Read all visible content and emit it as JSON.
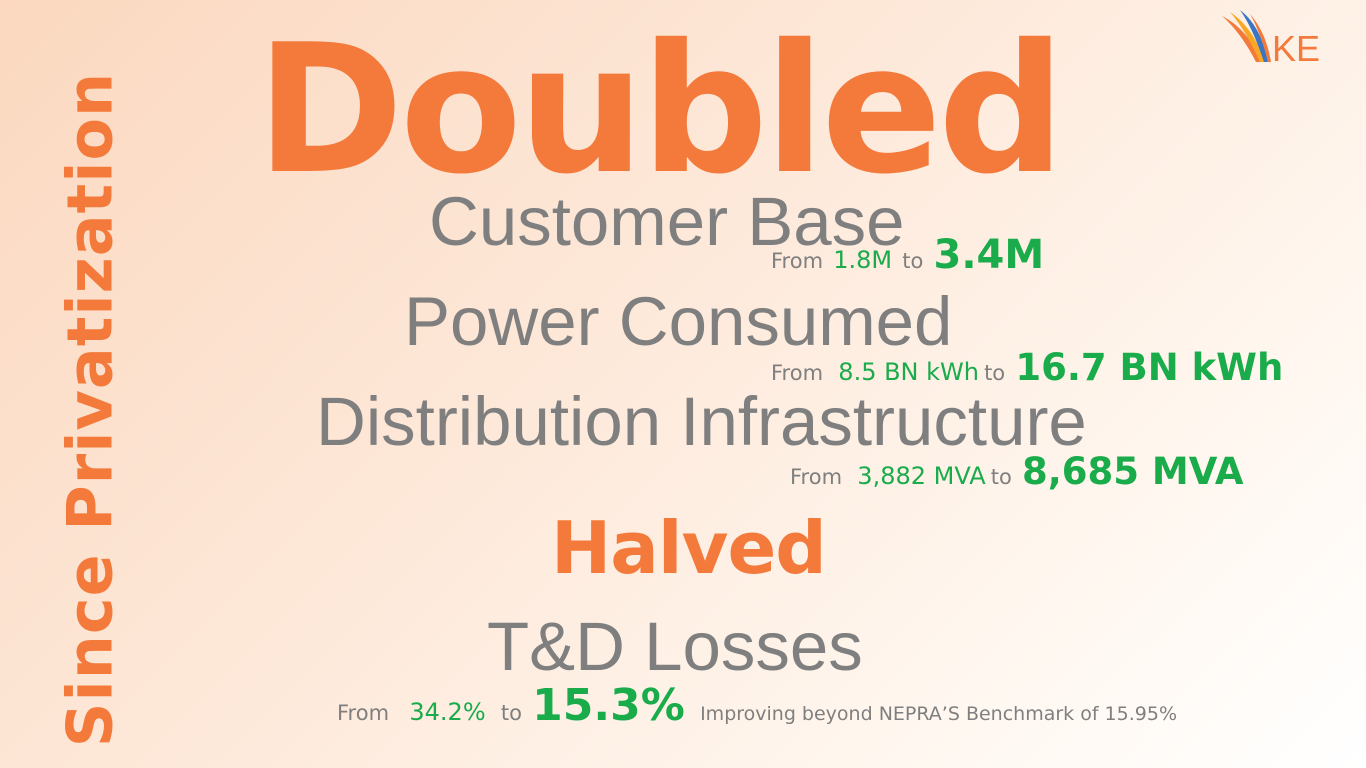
{
  "side_title": "Since Privatization",
  "headline_doubled": "Doubled",
  "headline_halved": "Halved",
  "metrics": [
    {
      "title": "Customer Base",
      "from_label": "From",
      "from_value": "1.8M",
      "to_label": "to",
      "to_value": "3.4M"
    },
    {
      "title": "Power Consumed",
      "from_label": "From",
      "from_value": "8.5 BN kWh",
      "to_label": "to",
      "to_value": "16.7 BN kWh"
    },
    {
      "title": "Distribution Infrastructure",
      "from_label": "From",
      "from_value": "3,882 MVA",
      "to_label": "to",
      "to_value": "8,685 MVA"
    },
    {
      "title": "T&D Losses",
      "from_label": "From",
      "from_value": "34.2%",
      "to_label": "to",
      "to_value": "15.3%",
      "note": "Improving beyond NEPRA’S Benchmark of 15.95%"
    }
  ],
  "logo_text": "KE",
  "colors": {
    "orange": "#f47a3c",
    "grey": "#7f7f7f",
    "green": "#1aab4b"
  }
}
